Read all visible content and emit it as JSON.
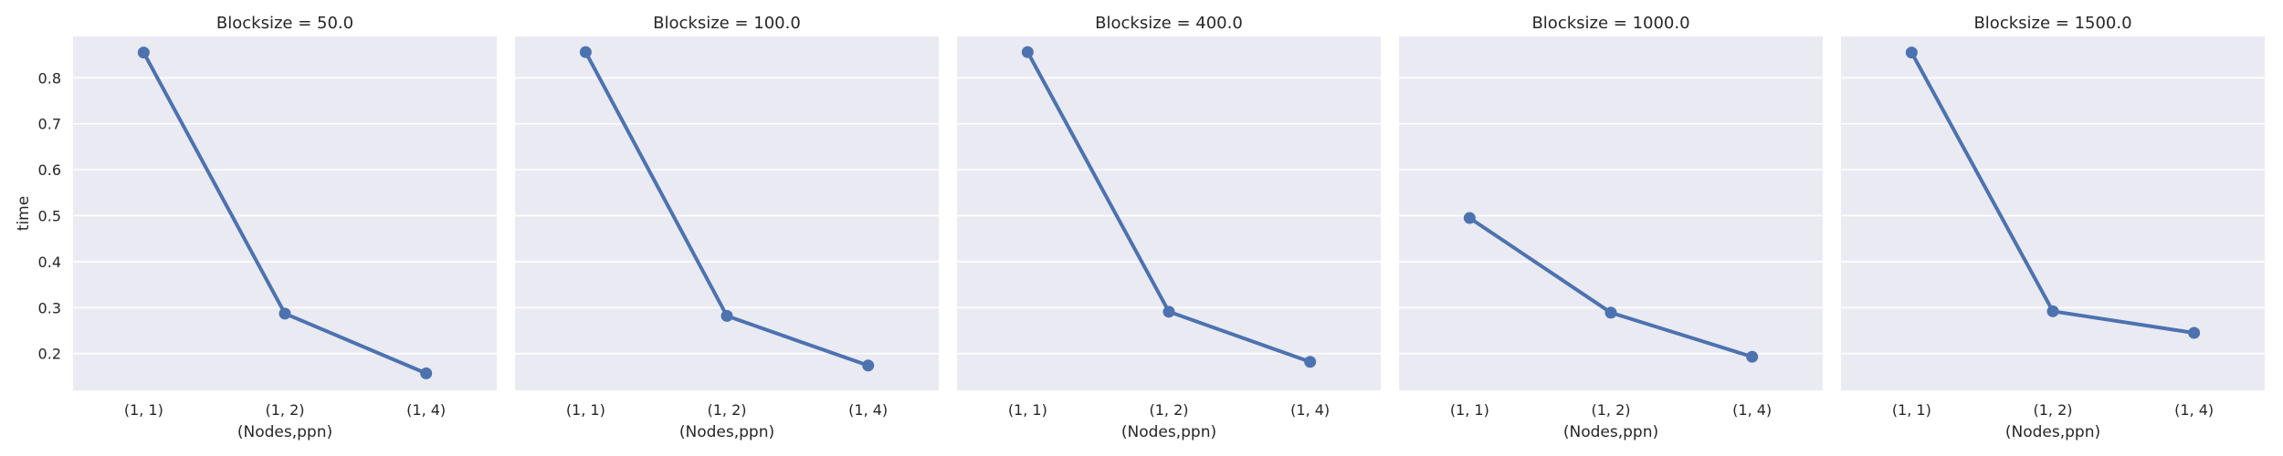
{
  "chart_data": {
    "type": "line",
    "ylabel": "time",
    "xlabel": "(Nodes,ppn)",
    "ylim": [
      0.12,
      0.89
    ],
    "yticks": [
      0.2,
      0.3,
      0.4,
      0.5,
      0.6,
      0.7,
      0.8
    ],
    "ytick_labels": [
      "0.2",
      "0.3",
      "0.4",
      "0.5",
      "0.6",
      "0.7",
      "0.8"
    ],
    "categories": [
      "(1, 1)",
      "(1, 2)",
      "(1, 4)"
    ],
    "grid": true,
    "panels": [
      {
        "title": "Blocksize = 50.0",
        "values": [
          0.855,
          0.287,
          0.157
        ]
      },
      {
        "title": "Blocksize = 100.0",
        "values": [
          0.856,
          0.282,
          0.174
        ]
      },
      {
        "title": "Blocksize = 400.0",
        "values": [
          0.856,
          0.291,
          0.182
        ]
      },
      {
        "title": "Blocksize = 1000.0",
        "values": [
          0.495,
          0.289,
          0.193
        ]
      },
      {
        "title": "Blocksize = 1500.0",
        "values": [
          0.855,
          0.292,
          0.245
        ]
      }
    ]
  }
}
